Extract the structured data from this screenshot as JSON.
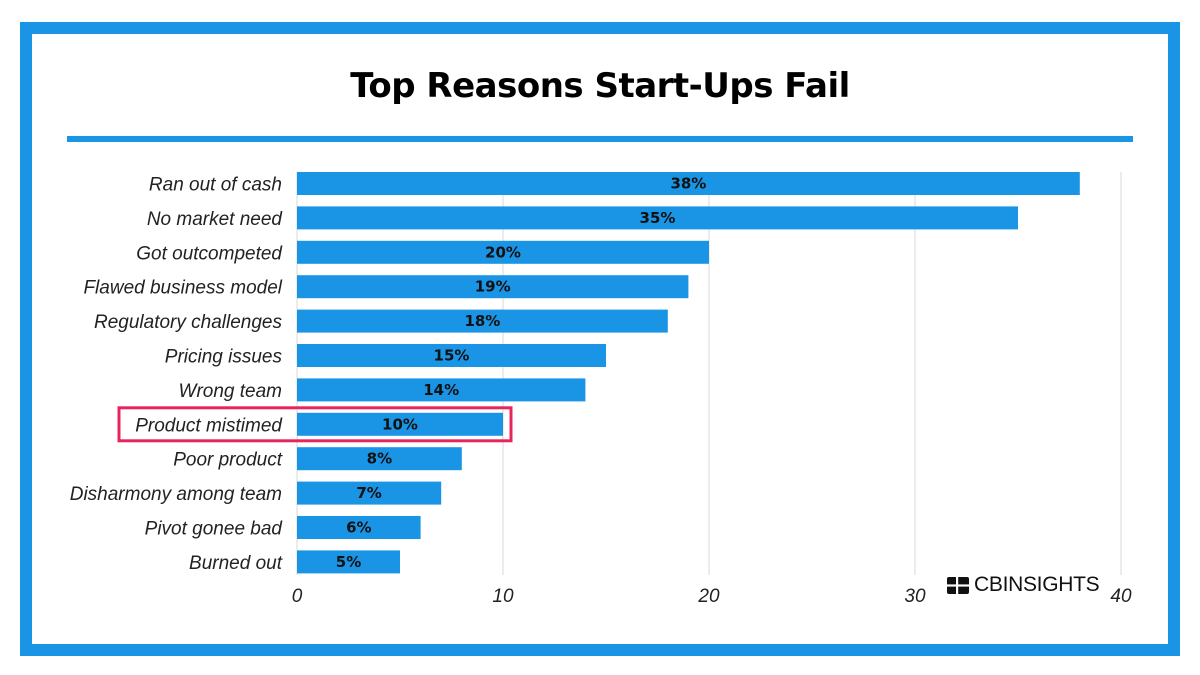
{
  "colors": {
    "frame": "#1a95e6",
    "bar": "#1a95e6",
    "highlight_box": "#e8245d",
    "grid": "#d9d9d9"
  },
  "brand": {
    "logo_text": "CBINSIGHTS",
    "logo_icon": "cb-insights-logo-mark"
  },
  "chart_data": {
    "type": "bar",
    "orientation": "horizontal",
    "title": "Top Reasons Start-Ups Fail",
    "xlabel": "",
    "ylabel": "",
    "categories": [
      "Ran out of cash",
      "No market need",
      "Got outcompeted",
      "Flawed business model",
      "Regulatory challenges",
      "Pricing issues",
      "Wrong team",
      "Product mistimed",
      "Poor product",
      "Disharmony among team",
      "Pivot gonee bad",
      "Burned out"
    ],
    "values": [
      38,
      35,
      20,
      19,
      18,
      15,
      14,
      10,
      8,
      7,
      6,
      5
    ],
    "data_labels": [
      "38%",
      "35%",
      "20%",
      "19%",
      "18%",
      "15%",
      "14%",
      "10%",
      "8%",
      "7%",
      "6%",
      "5%"
    ],
    "xlim": [
      0,
      40
    ],
    "xticks": [
      0,
      10,
      20,
      30,
      40
    ],
    "xtick_labels": [
      "0",
      "10",
      "20",
      "30",
      "40"
    ],
    "grid": "vertical",
    "legend": "none",
    "highlighted_category": "Product mistimed"
  }
}
